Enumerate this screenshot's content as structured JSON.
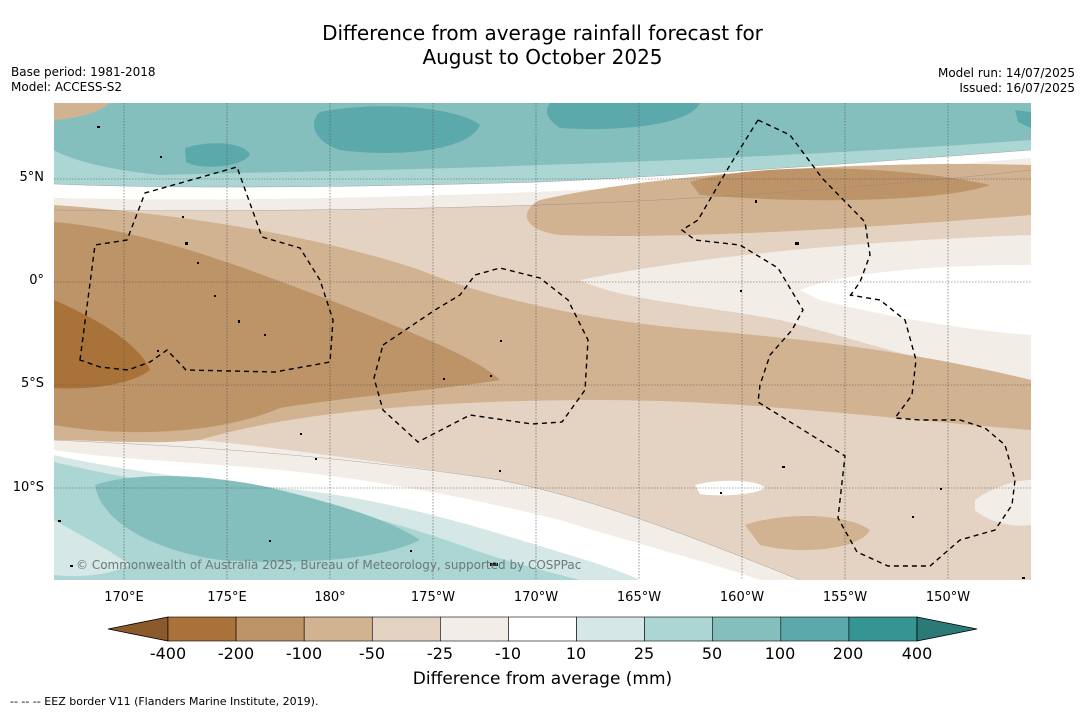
{
  "title_line1": "Difference from average rainfall forecast for",
  "title_line2": "August to October 2025",
  "meta_left": {
    "base_period": "Base period: 1981-2018",
    "model": "Model: ACCESS-S2"
  },
  "meta_right": {
    "model_run": "Model run: 14/07/2025",
    "issued": "Issued: 16/07/2025"
  },
  "longitudes": [
    "170°E",
    "175°E",
    "180°",
    "175°W",
    "170°W",
    "165°W",
    "160°W",
    "155°W",
    "150°W"
  ],
  "latitudes": [
    "5°N",
    "0°",
    "5°S",
    "10°S"
  ],
  "copyright": "© Commonwealth of Australia 2025, Bureau of Meteorology, supported by COSPPac",
  "colorbar": {
    "labels": [
      "-400",
      "-200",
      "-100",
      "-50",
      "-25",
      "-10",
      "10",
      "25",
      "50",
      "100",
      "200",
      "400"
    ],
    "colors": [
      "#a87238",
      "#bd9468",
      "#d1b291",
      "#e4d3c2",
      "#f3ede7",
      "#ffffff",
      "#d5e8e6",
      "#abd6d4",
      "#84bfbe",
      "#5ca9ab",
      "#349593"
    ],
    "title": "Difference from average (mm)"
  },
  "footer": "--  --  -- EEZ border V11 (Flanders Marine Institute, 2019)."
}
